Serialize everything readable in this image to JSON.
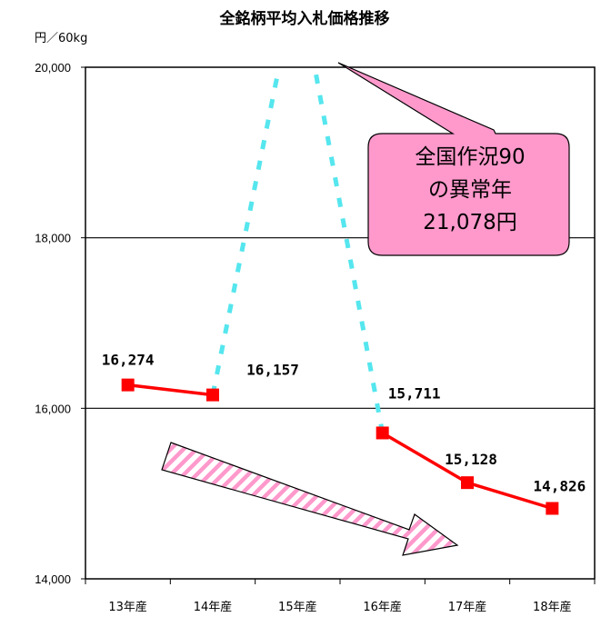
{
  "chart_data": {
    "type": "line",
    "title": "全銘柄平均入札価格推移",
    "unit_label": "円／60kg",
    "categories": [
      "13年産",
      "14年産",
      "15年産",
      "16年産",
      "17年産",
      "18年産"
    ],
    "y_ticks": [
      "14,000",
      "16,000",
      "18,000",
      "20,000"
    ],
    "ylim": [
      14000,
      20000
    ],
    "grid": true,
    "series": [
      {
        "values": [
          16274,
          16157,
          21078,
          15711,
          15128,
          14826
        ]
      }
    ],
    "data_labels": [
      "16,274",
      "16,157",
      "",
      "15,711",
      "15,128",
      "14,826"
    ],
    "annotation": {
      "lines": [
        "全国作況90",
        "の異常年",
        "21,078円"
      ]
    },
    "trend_arrow": "down"
  },
  "colors": {
    "solid_line": "#ff0000",
    "marker": "#ff0000",
    "dotted_line": "#55e6ee",
    "callout_fill": "#ff99cc",
    "arrow_stripe": "#ff99cc",
    "grid": "#000000"
  }
}
